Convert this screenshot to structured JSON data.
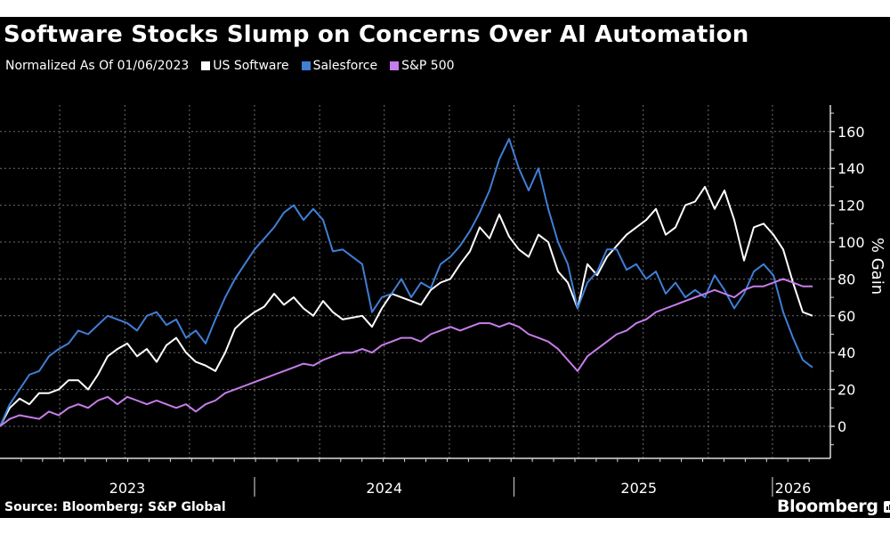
{
  "header": {
    "title": "Software Stocks Slump on Concerns Over AI Automation",
    "subtitle": "Normalized As Of 01/06/2023"
  },
  "footer": {
    "source": "Source: Bloomberg; S&P Global",
    "brand": "Bloomberg",
    "brand_icon": "bar-chart-icon"
  },
  "chart_data": {
    "type": "line",
    "title": "Software Stocks Slump on Concerns Over AI Automation",
    "subtitle": "Normalized As Of 01/06/2023",
    "xlabel": "",
    "ylabel": "% Gain",
    "ylim": [
      -17,
      170
    ],
    "yticks": [
      0,
      20,
      40,
      60,
      80,
      100,
      120,
      140,
      160
    ],
    "ytick_labels": [
      "0",
      "20",
      "40",
      "60",
      "80",
      "100",
      "120",
      "140",
      "160"
    ],
    "x_unit": "weeks since 2023-01-06 (biweekly samples)",
    "xlim": [
      0,
      171
    ],
    "year_labels": [
      {
        "label": "2023",
        "center_week": 26
      },
      {
        "label": "2024",
        "center_week": 78.5
      },
      {
        "label": "2025",
        "center_week": 130.5
      },
      {
        "label": "2026",
        "center_week": 162
      }
    ],
    "year_boundaries_weeks": [
      52,
      105,
      157.8
    ],
    "quarter_gridlines_weeks": [
      12.2,
      25.5,
      38.7,
      52,
      65.3,
      78.5,
      91.8,
      105,
      118.2,
      131.4,
      144.7,
      157.8
    ],
    "grid": true,
    "legend_position": "top-left",
    "x": [
      0,
      2,
      4,
      6,
      8,
      10,
      12,
      14,
      16,
      18,
      20,
      22,
      24,
      26,
      28,
      30,
      32,
      34,
      36,
      38,
      40,
      42,
      44,
      46,
      48,
      50,
      52,
      54,
      56,
      58,
      60,
      62,
      64,
      66,
      68,
      70,
      72,
      74,
      76,
      78,
      80,
      82,
      84,
      86,
      88,
      90,
      92,
      94,
      96,
      98,
      100,
      102,
      104,
      106,
      108,
      110,
      112,
      114,
      116,
      118,
      120,
      122,
      124,
      126,
      128,
      130,
      132,
      134,
      136,
      138,
      140,
      142,
      144,
      146,
      148,
      150,
      152,
      154,
      156,
      158,
      160,
      162,
      164,
      166
    ],
    "series": [
      {
        "name": "US Software",
        "color": "#ffffff",
        "values": [
          0,
          10,
          15,
          12,
          18,
          18,
          20,
          25,
          25,
          20,
          28,
          38,
          42,
          45,
          38,
          42,
          35,
          44,
          48,
          40,
          35,
          33,
          30,
          40,
          53,
          58,
          62,
          65,
          72,
          66,
          70,
          64,
          60,
          68,
          62,
          58,
          59,
          60,
          54,
          64,
          72,
          70,
          68,
          66,
          74,
          78,
          80,
          88,
          95,
          108,
          102,
          115,
          103,
          96,
          92,
          104,
          100,
          84,
          78,
          64,
          88,
          82,
          92,
          98,
          104,
          108,
          112,
          118,
          104,
          108,
          120,
          122,
          130,
          118,
          128,
          112,
          90,
          108,
          110,
          104,
          96,
          78,
          62,
          60
        ]
      },
      {
        "name": "Salesforce",
        "color": "#3f7fd6",
        "values": [
          0,
          12,
          20,
          28,
          30,
          38,
          42,
          45,
          52,
          50,
          55,
          60,
          58,
          56,
          52,
          60,
          62,
          55,
          58,
          48,
          52,
          45,
          58,
          70,
          80,
          88,
          96,
          102,
          108,
          116,
          120,
          112,
          118,
          112,
          95,
          96,
          92,
          88,
          62,
          70,
          72,
          80,
          70,
          78,
          75,
          88,
          92,
          98,
          106,
          116,
          128,
          145,
          156,
          140,
          128,
          140,
          118,
          100,
          88,
          64,
          78,
          84,
          96,
          96,
          85,
          88,
          80,
          84,
          72,
          78,
          70,
          74,
          70,
          82,
          74,
          64,
          72,
          84,
          88,
          82,
          62,
          48,
          36,
          32
        ]
      },
      {
        "name": "S&P 500",
        "color": "#c77dea",
        "values": [
          0,
          4,
          6,
          5,
          4,
          8,
          6,
          10,
          12,
          10,
          14,
          16,
          12,
          16,
          14,
          12,
          14,
          12,
          10,
          12,
          8,
          12,
          14,
          18,
          20,
          22,
          24,
          26,
          28,
          30,
          32,
          34,
          33,
          36,
          38,
          40,
          40,
          42,
          40,
          44,
          46,
          48,
          48,
          46,
          50,
          52,
          54,
          52,
          54,
          56,
          56,
          54,
          56,
          54,
          50,
          48,
          46,
          42,
          36,
          30,
          38,
          42,
          46,
          50,
          52,
          56,
          58,
          62,
          64,
          66,
          68,
          70,
          72,
          74,
          72,
          70,
          74,
          76,
          76,
          78,
          80,
          78,
          76,
          76
        ]
      }
    ]
  }
}
